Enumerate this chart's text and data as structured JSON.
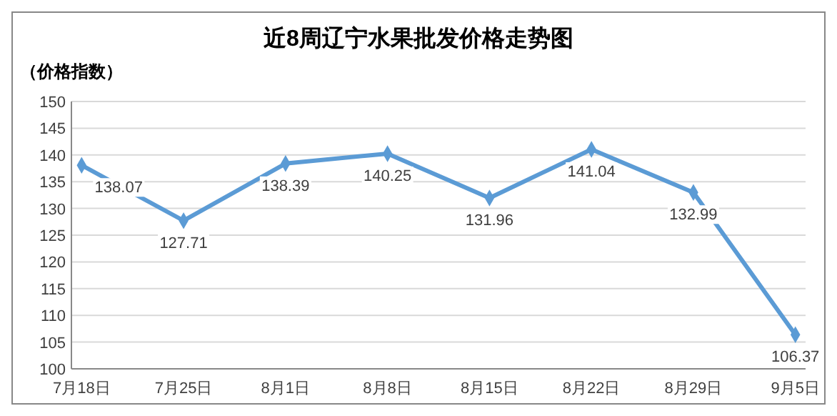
{
  "chart_data": {
    "type": "line",
    "title": "近8周辽宁水果批发价格走势图",
    "ylabel": "（价格指数）",
    "categories": [
      "7月18日",
      "7月25日",
      "8月1日",
      "8月8日",
      "8月15日",
      "8月22日",
      "8月29日",
      "9月5日"
    ],
    "series": [
      {
        "color": "#5b9bd5",
        "values": [
          138.07,
          127.71,
          138.39,
          140.25,
          131.96,
          141.04,
          132.99,
          106.37
        ]
      }
    ],
    "ylim": [
      100,
      150
    ],
    "yticks": [
      100,
      105,
      110,
      115,
      120,
      125,
      130,
      135,
      140,
      145,
      150
    ],
    "grid": "y",
    "marker": "diamond",
    "line_style": "solid",
    "data_labels": true
  }
}
